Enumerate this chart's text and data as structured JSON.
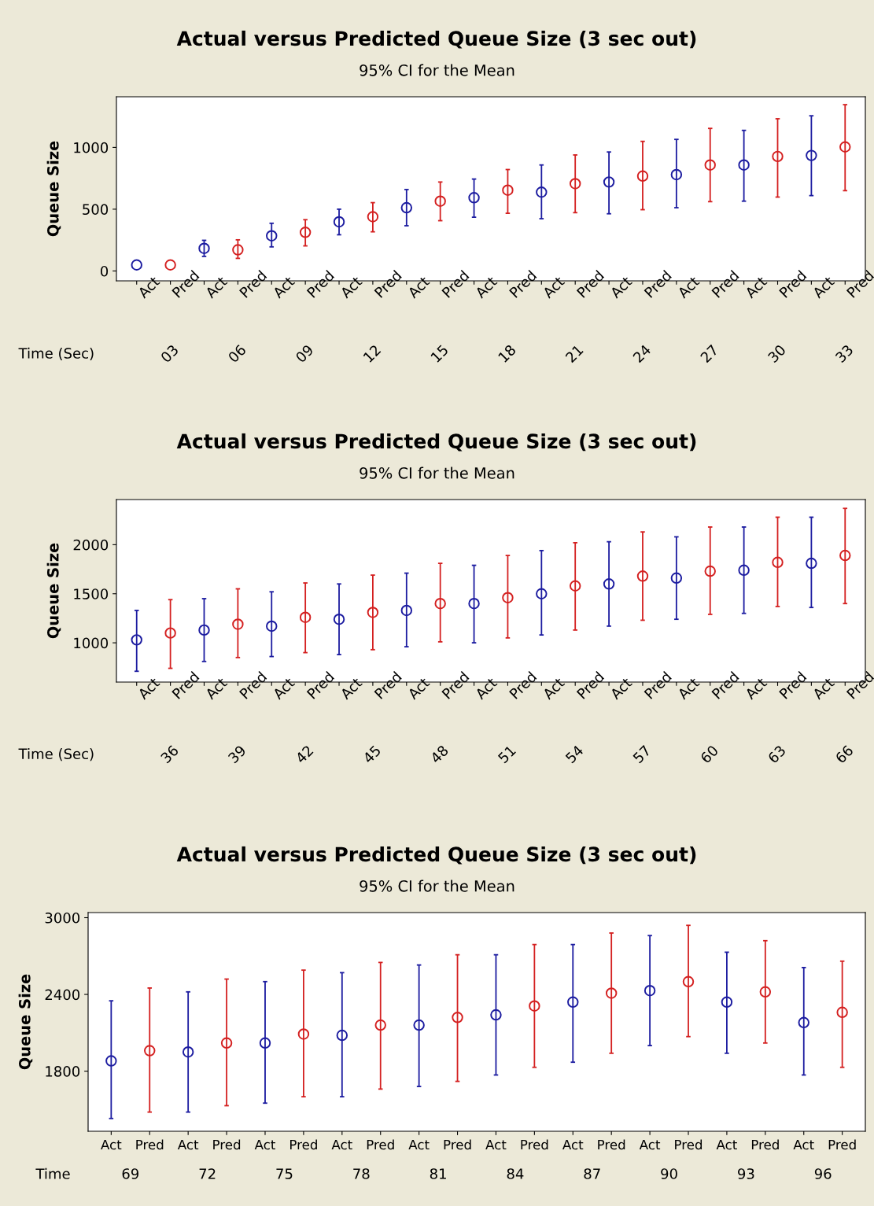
{
  "chart_data": [
    {
      "type": "scatter",
      "title": "Actual versus Predicted Queue Size (3 sec out)",
      "subtitle": "95% CI for the Mean",
      "ylabel": "Queue Size",
      "xlabel": "Time (Sec)",
      "categories": [
        "Act",
        "Pred",
        "Act",
        "Pred",
        "Act",
        "Pred",
        "Act",
        "Pred",
        "Act",
        "Pred",
        "Act",
        "Pred",
        "Act",
        "Pred",
        "Act",
        "Pred",
        "Act",
        "Pred",
        "Act",
        "Pred",
        "Act",
        "Pred"
      ],
      "annotations": [
        "03",
        "06",
        "09",
        "12",
        "15",
        "18",
        "21",
        "24",
        "27",
        "30",
        "33"
      ],
      "series": [
        {
          "colors": [
            "#1c1ca0",
            "#d42020",
            "#1c1ca0",
            "#d42020",
            "#1c1ca0",
            "#d42020",
            "#1c1ca0",
            "#d42020",
            "#1c1ca0",
            "#d42020",
            "#1c1ca0",
            "#d42020",
            "#1c1ca0",
            "#d42020",
            "#1c1ca0",
            "#d42020",
            "#1c1ca0",
            "#d42020",
            "#1c1ca0",
            "#d42020",
            "#1c1ca0",
            "#d42020"
          ],
          "values": [
            49,
            49,
            183,
            171,
            285,
            313,
            398,
            439,
            512,
            565,
            593,
            654,
            638,
            707,
            720,
            768,
            780,
            858,
            858,
            927,
            935,
            1004
          ],
          "errors": [
            null,
            null,
            [
              118,
              248
            ],
            [
              102,
              252
            ],
            [
              195,
              386
            ],
            [
              203,
              415
            ],
            [
              293,
              500
            ],
            [
              317,
              553
            ],
            [
              366,
              659
            ],
            [
              407,
              720
            ],
            [
              435,
              744
            ],
            [
              467,
              821
            ],
            [
              423,
              858
            ],
            [
              472,
              939
            ],
            [
              463,
              963
            ],
            [
              496,
              1049
            ],
            [
              512,
              1065
            ],
            [
              561,
              1154
            ],
            [
              565,
              1138
            ],
            [
              598,
              1232
            ],
            [
              610,
              1256
            ],
            [
              650,
              1346
            ]
          ]
        }
      ],
      "ylim": [
        -80,
        1410
      ],
      "yticks": [
        0,
        500,
        1000
      ],
      "marker": "circle",
      "grid": false,
      "legend": false
    },
    {
      "type": "scatter",
      "title": "Actual versus Predicted Queue Size (3 sec out)",
      "subtitle": "95% CI for the Mean",
      "ylabel": "Queue Size",
      "xlabel": "Time (Sec)",
      "categories": [
        "Act",
        "Pred",
        "Act",
        "Pred",
        "Act",
        "Pred",
        "Act",
        "Pred",
        "Act",
        "Pred",
        "Act",
        "Pred",
        "Act",
        "Pred",
        "Act",
        "Pred",
        "Act",
        "Pred",
        "Act",
        "Pred",
        "Act",
        "Pred"
      ],
      "annotations": [
        "36",
        "39",
        "42",
        "45",
        "48",
        "51",
        "54",
        "57",
        "60",
        "63",
        "66"
      ],
      "series": [
        {
          "colors": [
            "#1c1ca0",
            "#d42020",
            "#1c1ca0",
            "#d42020",
            "#1c1ca0",
            "#d42020",
            "#1c1ca0",
            "#d42020",
            "#1c1ca0",
            "#d42020",
            "#1c1ca0",
            "#d42020",
            "#1c1ca0",
            "#d42020",
            "#1c1ca0",
            "#d42020",
            "#1c1ca0",
            "#d42020",
            "#1c1ca0",
            "#d42020",
            "#1c1ca0",
            "#d42020"
          ],
          "values": [
            1030,
            1100,
            1130,
            1190,
            1170,
            1260,
            1240,
            1310,
            1330,
            1400,
            1400,
            1460,
            1500,
            1580,
            1600,
            1680,
            1660,
            1730,
            1740,
            1820,
            1810,
            1890
          ],
          "errors": [
            [
              710,
              1330
            ],
            [
              740,
              1440
            ],
            [
              810,
              1450
            ],
            [
              850,
              1550
            ],
            [
              860,
              1520
            ],
            [
              900,
              1610
            ],
            [
              880,
              1600
            ],
            [
              930,
              1690
            ],
            [
              960,
              1710
            ],
            [
              1010,
              1810
            ],
            [
              1000,
              1790
            ],
            [
              1050,
              1890
            ],
            [
              1080,
              1940
            ],
            [
              1130,
              2020
            ],
            [
              1170,
              2030
            ],
            [
              1230,
              2130
            ],
            [
              1240,
              2080
            ],
            [
              1290,
              2180
            ],
            [
              1300,
              2180
            ],
            [
              1370,
              2280
            ],
            [
              1360,
              2280
            ],
            [
              1400,
              2370
            ]
          ]
        }
      ],
      "ylim": [
        600,
        2460
      ],
      "yticks": [
        1000,
        1500,
        2000
      ],
      "marker": "circle",
      "grid": false,
      "legend": false
    },
    {
      "type": "scatter",
      "title": "Actual versus Predicted Queue Size (3 sec out)",
      "subtitle": "95% CI for the Mean",
      "ylabel": "Queue Size",
      "xlabel": "Time",
      "categories": [
        "Act",
        "Pred",
        "Act",
        "Pred",
        "Act",
        "Pred",
        "Act",
        "Pred",
        "Act",
        "Pred",
        "Act",
        "Pred",
        "Act",
        "Pred",
        "Act",
        "Pred",
        "Act",
        "Pred",
        "Act",
        "Pred"
      ],
      "annotations": [
        "69",
        "72",
        "75",
        "78",
        "81",
        "84",
        "87",
        "90",
        "93",
        "96"
      ],
      "series": [
        {
          "colors": [
            "#1c1ca0",
            "#d42020",
            "#1c1ca0",
            "#d42020",
            "#1c1ca0",
            "#d42020",
            "#1c1ca0",
            "#d42020",
            "#1c1ca0",
            "#d42020",
            "#1c1ca0",
            "#d42020",
            "#1c1ca0",
            "#d42020",
            "#1c1ca0",
            "#d42020",
            "#1c1ca0",
            "#d42020",
            "#1c1ca0",
            "#d42020"
          ],
          "values": [
            1880,
            1960,
            1950,
            2020,
            2020,
            2090,
            2080,
            2160,
            2160,
            2220,
            2240,
            2310,
            2340,
            2410,
            2430,
            2500,
            2340,
            2420,
            2180,
            2260
          ],
          "errors": [
            [
              1430,
              2350
            ],
            [
              1480,
              2450
            ],
            [
              1480,
              2420
            ],
            [
              1530,
              2520
            ],
            [
              1550,
              2500
            ],
            [
              1600,
              2590
            ],
            [
              1600,
              2570
            ],
            [
              1660,
              2650
            ],
            [
              1680,
              2630
            ],
            [
              1720,
              2710
            ],
            [
              1770,
              2710
            ],
            [
              1830,
              2790
            ],
            [
              1870,
              2790
            ],
            [
              1940,
              2880
            ],
            [
              2000,
              2860
            ],
            [
              2070,
              2940
            ],
            [
              1940,
              2730
            ],
            [
              2020,
              2820
            ],
            [
              1770,
              2610
            ],
            [
              1830,
              2660
            ]
          ]
        }
      ],
      "ylim": [
        1330,
        3040
      ],
      "yticks": [
        1800,
        2400,
        3000
      ],
      "marker": "circle",
      "grid": false,
      "legend": false
    }
  ]
}
